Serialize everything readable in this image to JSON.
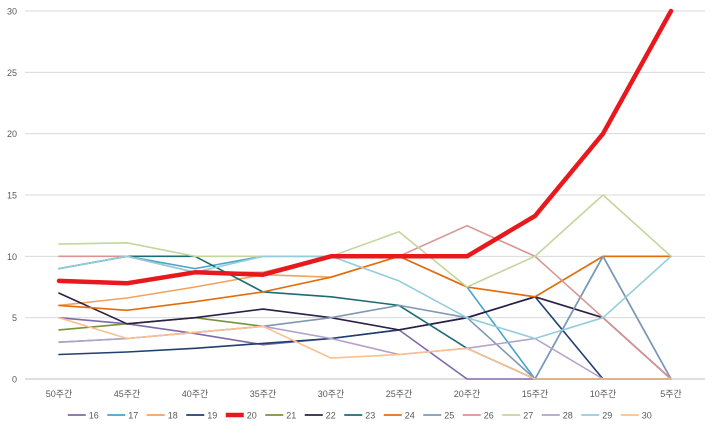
{
  "chart_data": {
    "type": "line",
    "title": "",
    "xlabel": "",
    "ylabel": "",
    "categories": [
      "50주간",
      "45주간",
      "40주간",
      "35주간",
      "30주간",
      "25주간",
      "20주간",
      "15주간",
      "10주간",
      "5주간"
    ],
    "ylim": [
      0,
      30
    ],
    "yticks": [
      0,
      5,
      10,
      15,
      20,
      25,
      30
    ],
    "grid": true,
    "legend_position": "bottom",
    "series": [
      {
        "name": "16",
        "color": "#7e6aa7",
        "values": [
          5,
          4.5,
          3.7,
          2.8,
          3.3,
          4,
          0,
          0,
          0,
          0
        ]
      },
      {
        "name": "17",
        "color": "#4aa3c8",
        "values": [
          9,
          10,
          9,
          10,
          10,
          10,
          7.5,
          0,
          10,
          0
        ]
      },
      {
        "name": "18",
        "color": "#f0a35e",
        "values": [
          6,
          6.6,
          7.5,
          8.5,
          8.3,
          10,
          7.5,
          6.7,
          10,
          10
        ]
      },
      {
        "name": "19",
        "color": "#1f3f6e",
        "values": [
          2,
          2.2,
          2.5,
          2.9,
          3.3,
          4,
          5,
          6.7,
          0,
          0
        ]
      },
      {
        "name": "20",
        "color": "#e8191c",
        "values": [
          8,
          7.8,
          8.7,
          8.5,
          10,
          10,
          10,
          13.3,
          20,
          30
        ]
      },
      {
        "name": "21",
        "color": "#77933c",
        "values": [
          4,
          4.5,
          5,
          4.3,
          null,
          null,
          null,
          null,
          null,
          null
        ]
      },
      {
        "name": "22",
        "color": "#2d1f47",
        "values": [
          7,
          4.5,
          5,
          5.7,
          5,
          4,
          5,
          6.7,
          5,
          0
        ]
      },
      {
        "name": "23",
        "color": "#1d6c75",
        "values": [
          9,
          10,
          10,
          7.1,
          6.7,
          6,
          2.5,
          0,
          0,
          0
        ]
      },
      {
        "name": "24",
        "color": "#e46c0a",
        "values": [
          6,
          5.6,
          6.3,
          7.1,
          8.3,
          10,
          7.5,
          6.7,
          10,
          10
        ]
      },
      {
        "name": "25",
        "color": "#7f98b4",
        "values": [
          3,
          3.3,
          3.8,
          4.3,
          5,
          6,
          5,
          0,
          10,
          0
        ]
      },
      {
        "name": "26",
        "color": "#d99591",
        "values": [
          10,
          10,
          8.7,
          8.7,
          10,
          10,
          12.5,
          10,
          5,
          0
        ]
      },
      {
        "name": "27",
        "color": "#c3d69b",
        "values": [
          11,
          11.1,
          10,
          10,
          10,
          12,
          7.5,
          10,
          15,
          10
        ]
      },
      {
        "name": "28",
        "color": "#b3a2c7",
        "values": [
          3,
          3.3,
          3.8,
          4.3,
          3.3,
          2,
          2.5,
          3.3,
          0,
          0
        ]
      },
      {
        "name": "29",
        "color": "#93cddd",
        "values": [
          9,
          10,
          8.7,
          10,
          10,
          8,
          5,
          3.3,
          5,
          10
        ]
      },
      {
        "name": "30",
        "color": "#fac090",
        "values": [
          5,
          3.3,
          3.8,
          4.3,
          1.7,
          2,
          2.5,
          0,
          0,
          0
        ]
      }
    ]
  }
}
